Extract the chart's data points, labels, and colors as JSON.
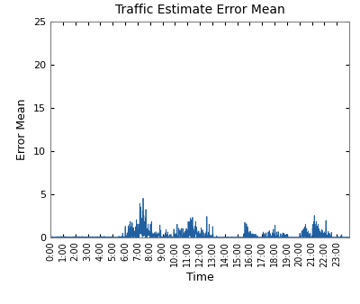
{
  "title": "Traffic Estimate Error Mean",
  "xlabel": "Time",
  "ylabel": "Error Mean",
  "xlim": [
    0,
    1440
  ],
  "ylim": [
    0,
    25
  ],
  "yticks": [
    0,
    5,
    10,
    15,
    20,
    25
  ],
  "xtick_positions": [
    0,
    60,
    120,
    180,
    240,
    300,
    360,
    420,
    480,
    540,
    600,
    660,
    720,
    780,
    840,
    900,
    960,
    1020,
    1080,
    1140,
    1200,
    1260,
    1320,
    1380
  ],
  "xtick_labels": [
    "0:00",
    "1:00",
    "2:00",
    "3:00",
    "4:00",
    "5:00",
    "6:00",
    "7:00",
    "8:00",
    "9:00",
    "10:00",
    "11:00",
    "12:00",
    "13:00",
    "14:00",
    "15:00",
    "16:00",
    "17:00",
    "18:00",
    "19:00",
    "20:00",
    "21:00",
    "22:00",
    "23:00"
  ],
  "line_color": "#2060a0",
  "line_width": 0.6,
  "background_color": "#ffffff",
  "title_fontsize": 10,
  "label_fontsize": 9,
  "tick_fontsize": 7
}
